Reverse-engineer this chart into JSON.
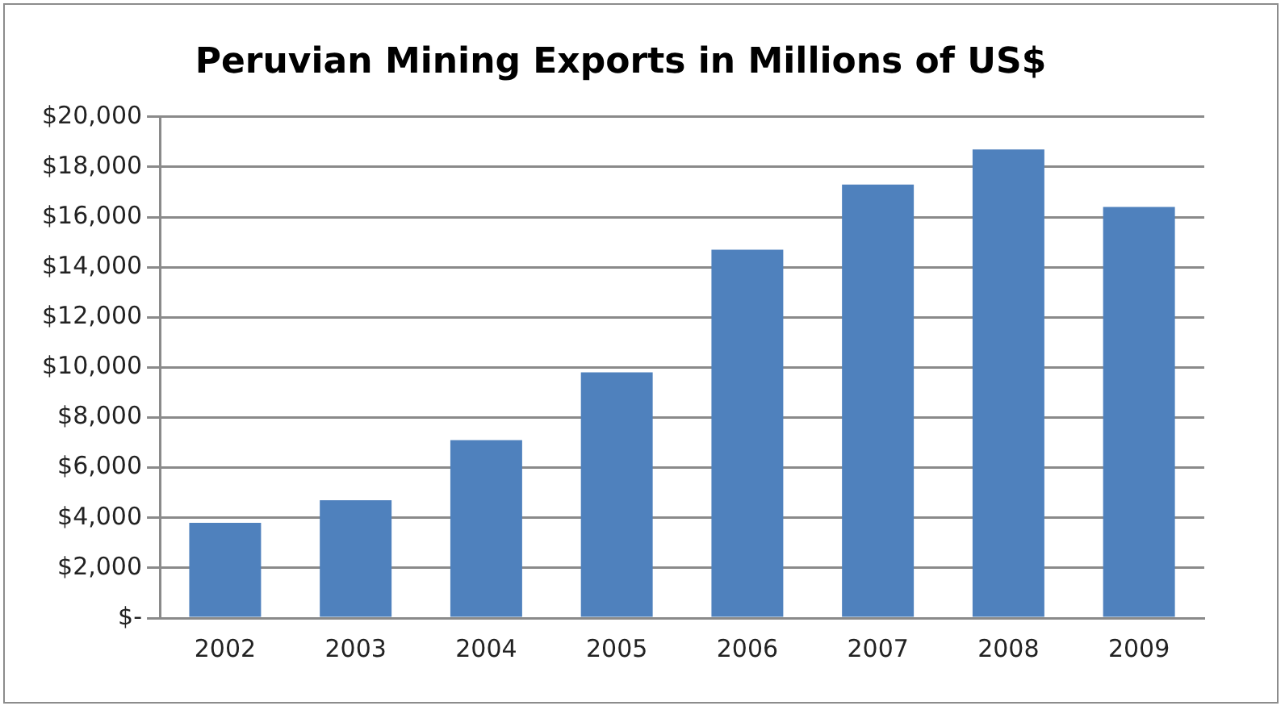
{
  "chart_data": {
    "type": "bar",
    "title": "Peruvian Mining Exports in Millions of US$",
    "categories": [
      "2002",
      "2003",
      "2004",
      "2005",
      "2006",
      "2007",
      "2008",
      "2009"
    ],
    "values": [
      3800,
      4700,
      7100,
      9800,
      14700,
      17300,
      18700,
      16400
    ],
    "color": "#4f81bd",
    "ylim": [
      0,
      20000
    ],
    "yticks": [
      {
        "value": 0,
        "label": "$-"
      },
      {
        "value": 2000,
        "label": "$2,000"
      },
      {
        "value": 4000,
        "label": "$4,000"
      },
      {
        "value": 6000,
        "label": "$6,000"
      },
      {
        "value": 8000,
        "label": "$8,000"
      },
      {
        "value": 10000,
        "label": "$10,000"
      },
      {
        "value": 12000,
        "label": "$12,000"
      },
      {
        "value": 14000,
        "label": "$14,000"
      },
      {
        "value": 16000,
        "label": "$16,000"
      },
      {
        "value": 18000,
        "label": "$18,000"
      },
      {
        "value": 20000,
        "label": "$20,000"
      }
    ],
    "grid": "y",
    "legend": false
  }
}
